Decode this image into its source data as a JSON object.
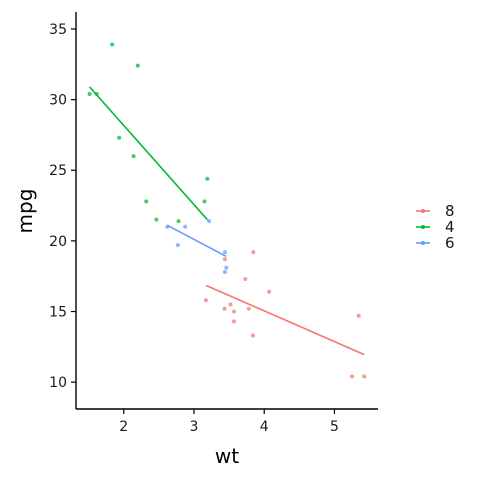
{
  "chart_data": {
    "type": "scatter",
    "title": "",
    "xlabel": "wt",
    "ylabel": "mpg",
    "xlim": [
      1.32,
      5.62
    ],
    "ylim": [
      8.1,
      36.2
    ],
    "x_ticks": [
      2,
      3,
      4,
      5
    ],
    "y_ticks": [
      10,
      15,
      20,
      25,
      30,
      35
    ],
    "grid": false,
    "legend_position": "right",
    "series": [
      {
        "name": "8",
        "color": "#F8766D",
        "points": [
          [
            3.44,
            18.7
          ],
          [
            3.57,
            14.3
          ],
          [
            4.07,
            16.4
          ],
          [
            3.73,
            17.3
          ],
          [
            3.78,
            15.2
          ],
          [
            5.25,
            10.4
          ],
          [
            5.424,
            10.4
          ],
          [
            5.345,
            14.7
          ],
          [
            3.52,
            15.5
          ],
          [
            3.435,
            15.2
          ],
          [
            3.84,
            13.3
          ],
          [
            3.845,
            19.2
          ],
          [
            3.17,
            15.8
          ],
          [
            3.57,
            15.0
          ]
        ],
        "fit": [
          [
            3.17,
            16.85
          ],
          [
            5.424,
            11.95
          ]
        ]
      },
      {
        "name": "4",
        "color": "#00BA38",
        "points": [
          [
            2.32,
            22.8
          ],
          [
            3.19,
            24.4
          ],
          [
            3.15,
            22.8
          ],
          [
            2.2,
            32.4
          ],
          [
            1.615,
            30.4
          ],
          [
            1.835,
            33.9
          ],
          [
            2.465,
            21.5
          ],
          [
            1.935,
            27.3
          ],
          [
            2.14,
            26.0
          ],
          [
            1.513,
            30.4
          ],
          [
            2.78,
            21.4
          ]
        ],
        "fit": [
          [
            1.513,
            30.9
          ],
          [
            3.19,
            21.5
          ]
        ]
      },
      {
        "name": "6",
        "color": "#619CFF",
        "points": [
          [
            2.62,
            21.0
          ],
          [
            2.875,
            21.0
          ],
          [
            3.215,
            21.4
          ],
          [
            3.46,
            18.1
          ],
          [
            3.44,
            19.2
          ],
          [
            3.44,
            17.8
          ],
          [
            2.77,
            19.7
          ]
        ],
        "fit": [
          [
            2.62,
            21.1
          ],
          [
            3.46,
            18.9
          ]
        ]
      }
    ]
  }
}
